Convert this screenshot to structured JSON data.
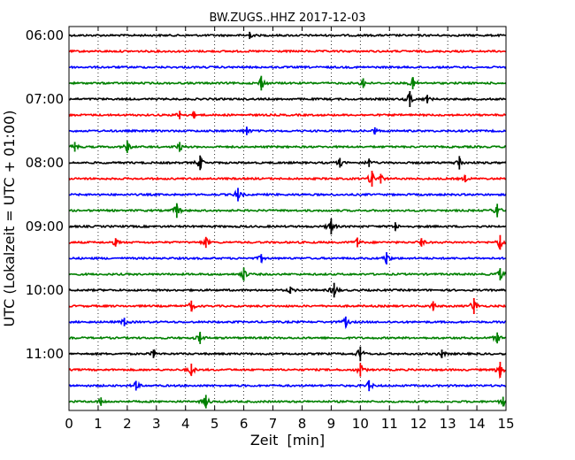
{
  "chart_data": {
    "type": "line",
    "title": "BW.ZUGS..HHZ 2017-12-03",
    "xlabel": "Zeit  [min]",
    "ylabel": "UTC (Lokalzeit = UTC + 01:00)",
    "xlim": [
      0,
      15
    ],
    "x_ticks": [
      "0",
      "1",
      "2",
      "3",
      "4",
      "5",
      "6",
      "7",
      "8",
      "9",
      "10",
      "11",
      "12",
      "13",
      "14",
      "15"
    ],
    "y_ticks": [
      "06:00",
      "07:00",
      "08:00",
      "09:00",
      "10:00",
      "11:00"
    ],
    "grid": "vertical dotted",
    "trace_interval_min": 15,
    "trace_colors": [
      "#000000",
      "#ff0000",
      "#0000ff",
      "#008000"
    ],
    "series": [
      {
        "start": "06:00",
        "events": [
          {
            "t": 6.2,
            "a": 0.3
          }
        ]
      },
      {
        "start": "06:15",
        "events": []
      },
      {
        "start": "06:30",
        "events": []
      },
      {
        "start": "06:45",
        "events": [
          {
            "t": 6.6,
            "a": 0.9
          },
          {
            "t": 10.1,
            "a": 0.5
          },
          {
            "t": 11.8,
            "a": 0.7
          }
        ]
      },
      {
        "start": "07:00",
        "events": [
          {
            "t": 11.7,
            "a": 1.0
          },
          {
            "t": 12.3,
            "a": 0.4
          }
        ]
      },
      {
        "start": "07:15",
        "events": [
          {
            "t": 3.8,
            "a": 0.4
          },
          {
            "t": 4.3,
            "a": 0.3
          }
        ]
      },
      {
        "start": "07:30",
        "events": [
          {
            "t": 6.1,
            "a": 0.4
          },
          {
            "t": 10.5,
            "a": 0.3
          }
        ]
      },
      {
        "start": "07:45",
        "events": [
          {
            "t": 0.2,
            "a": 0.5
          },
          {
            "t": 2.0,
            "a": 0.7
          },
          {
            "t": 3.8,
            "a": 0.5
          }
        ]
      },
      {
        "start": "08:00",
        "events": [
          {
            "t": 4.5,
            "a": 0.9
          },
          {
            "t": 9.3,
            "a": 0.5
          },
          {
            "t": 10.3,
            "a": 0.4
          },
          {
            "t": 13.4,
            "a": 0.8
          }
        ]
      },
      {
        "start": "08:15",
        "events": [
          {
            "t": 10.4,
            "a": 1.0
          },
          {
            "t": 10.7,
            "a": 0.5
          },
          {
            "t": 13.6,
            "a": 0.3
          }
        ]
      },
      {
        "start": "08:30",
        "events": [
          {
            "t": 5.8,
            "a": 0.8
          }
        ]
      },
      {
        "start": "08:45",
        "events": [
          {
            "t": 3.7,
            "a": 0.9
          },
          {
            "t": 14.7,
            "a": 0.8
          }
        ]
      },
      {
        "start": "09:00",
        "events": [
          {
            "t": 9.0,
            "a": 1.0
          },
          {
            "t": 11.2,
            "a": 0.4
          }
        ]
      },
      {
        "start": "09:15",
        "events": [
          {
            "t": 1.6,
            "a": 0.4
          },
          {
            "t": 4.7,
            "a": 0.6
          },
          {
            "t": 9.9,
            "a": 0.5
          },
          {
            "t": 12.1,
            "a": 0.4
          },
          {
            "t": 14.8,
            "a": 0.9
          }
        ]
      },
      {
        "start": "09:30",
        "events": [
          {
            "t": 6.6,
            "a": 0.4
          },
          {
            "t": 10.9,
            "a": 0.7
          }
        ]
      },
      {
        "start": "09:45",
        "events": [
          {
            "t": 6.0,
            "a": 0.8
          },
          {
            "t": 14.8,
            "a": 0.7
          }
        ]
      },
      {
        "start": "10:00",
        "events": [
          {
            "t": 9.1,
            "a": 0.9
          },
          {
            "t": 7.6,
            "a": 0.3
          }
        ]
      },
      {
        "start": "10:15",
        "events": [
          {
            "t": 4.2,
            "a": 0.6
          },
          {
            "t": 12.5,
            "a": 0.5
          },
          {
            "t": 13.9,
            "a": 1.0
          }
        ]
      },
      {
        "start": "10:30",
        "events": [
          {
            "t": 1.9,
            "a": 0.4
          },
          {
            "t": 9.5,
            "a": 0.6
          }
        ]
      },
      {
        "start": "10:45",
        "events": [
          {
            "t": 4.5,
            "a": 0.7
          },
          {
            "t": 14.7,
            "a": 0.6
          }
        ]
      },
      {
        "start": "11:00",
        "events": [
          {
            "t": 2.9,
            "a": 0.4
          },
          {
            "t": 10.0,
            "a": 0.9
          },
          {
            "t": 12.8,
            "a": 0.4
          }
        ]
      },
      {
        "start": "11:15",
        "events": [
          {
            "t": 4.2,
            "a": 0.7
          },
          {
            "t": 10.0,
            "a": 0.8
          },
          {
            "t": 14.8,
            "a": 1.0
          }
        ]
      },
      {
        "start": "11:30",
        "events": [
          {
            "t": 2.3,
            "a": 0.5
          },
          {
            "t": 10.3,
            "a": 0.6
          }
        ]
      },
      {
        "start": "11:45",
        "events": [
          {
            "t": 1.1,
            "a": 0.4
          },
          {
            "t": 4.7,
            "a": 0.8
          },
          {
            "t": 14.9,
            "a": 0.5
          }
        ]
      }
    ]
  }
}
